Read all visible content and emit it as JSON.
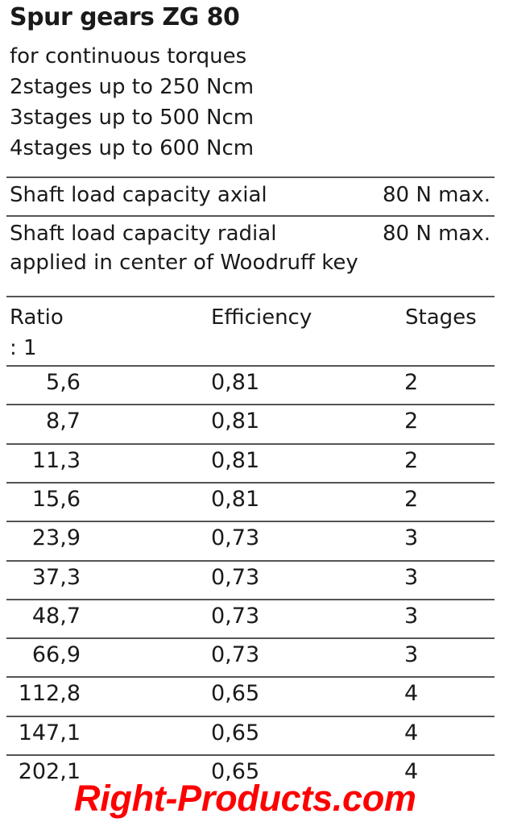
{
  "title": "Spur gears ZG 80",
  "specs": [
    "for continuous torques",
    "2stages up to 250 Ncm",
    "3stages up to 500 Ncm",
    "4stages up to 600 Ncm"
  ],
  "load": {
    "axial_label": "Shaft load capacity axial",
    "axial_value": "80 N max.",
    "radial_label": "Shaft load capacity radial",
    "radial_value": "80 N max.",
    "radial_note": "applied in center of Woodruff key"
  },
  "table": {
    "headers": {
      "ratio": "Ratio",
      "ratio_unit": ": 1",
      "efficiency": "Efficiency",
      "stages": "Stages"
    },
    "rows": [
      {
        "ratio": "5,6",
        "efficiency": "0,81",
        "stages": "2"
      },
      {
        "ratio": "8,7",
        "efficiency": "0,81",
        "stages": "2"
      },
      {
        "ratio": "11,3",
        "efficiency": "0,81",
        "stages": "2"
      },
      {
        "ratio": "15,6",
        "efficiency": "0,81",
        "stages": "2"
      },
      {
        "ratio": "23,9",
        "efficiency": "0,73",
        "stages": "3"
      },
      {
        "ratio": "37,3",
        "efficiency": "0,73",
        "stages": "3"
      },
      {
        "ratio": "48,7",
        "efficiency": "0,73",
        "stages": "3"
      },
      {
        "ratio": "66,9",
        "efficiency": "0,73",
        "stages": "3"
      },
      {
        "ratio": "112,8",
        "efficiency": "0,65",
        "stages": "4"
      },
      {
        "ratio": "147,1",
        "efficiency": "0,65",
        "stages": "4"
      },
      {
        "ratio": "202,1",
        "efficiency": "0,65",
        "stages": "4"
      }
    ]
  },
  "watermark": "Right-Products.com",
  "colors": {
    "text": "#1a1a1a",
    "rule": "#555555",
    "watermark": "#ff0000"
  }
}
